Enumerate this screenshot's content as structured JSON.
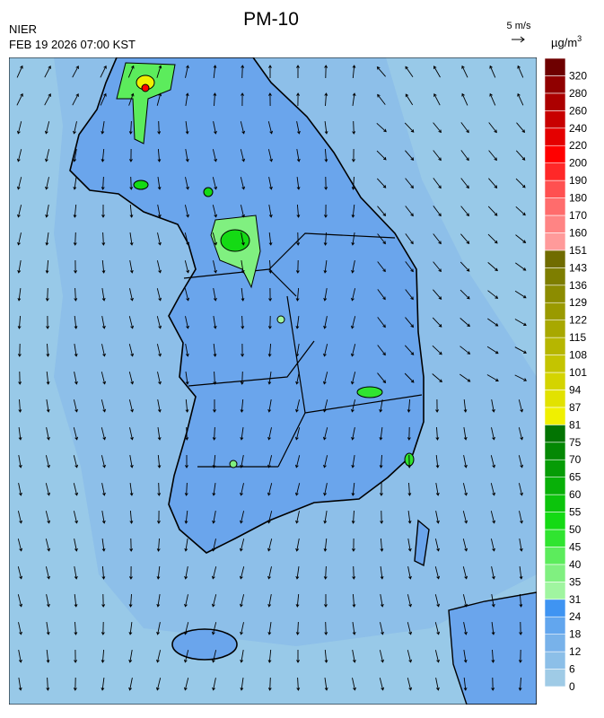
{
  "header": {
    "title": "PM-10",
    "agency": "NIER",
    "timestamp": "FEB 19 2026 07:00 KST"
  },
  "wind_scale": {
    "label": "5 m/s"
  },
  "colorbar": {
    "unit": {
      "base": "µg/m",
      "exponent": "3"
    },
    "levels": [
      {
        "value": 0,
        "color": "#9fcbe6"
      },
      {
        "value": 6,
        "color": "#8cbfe8"
      },
      {
        "value": 12,
        "color": "#78b2ea"
      },
      {
        "value": 18,
        "color": "#62a6ee"
      },
      {
        "value": 24,
        "color": "#3f94f2"
      },
      {
        "value": 31,
        "color": "#a0f5a0"
      },
      {
        "value": 35,
        "color": "#80f080"
      },
      {
        "value": 40,
        "color": "#5cec5c"
      },
      {
        "value": 45,
        "color": "#30e430"
      },
      {
        "value": 50,
        "color": "#14da14"
      },
      {
        "value": 55,
        "color": "#0cc40c"
      },
      {
        "value": 60,
        "color": "#08b008"
      },
      {
        "value": 65,
        "color": "#069c06"
      },
      {
        "value": 70,
        "color": "#048804"
      },
      {
        "value": 75,
        "color": "#027402"
      },
      {
        "value": 81,
        "color": "#f0f000"
      },
      {
        "value": 87,
        "color": "#e2e200"
      },
      {
        "value": 94,
        "color": "#d4d400"
      },
      {
        "value": 101,
        "color": "#c4c400"
      },
      {
        "value": 108,
        "color": "#b6b600"
      },
      {
        "value": 115,
        "color": "#a8a800"
      },
      {
        "value": 122,
        "color": "#9a9a00"
      },
      {
        "value": 129,
        "color": "#8c8c00"
      },
      {
        "value": 136,
        "color": "#7e7e00"
      },
      {
        "value": 143,
        "color": "#706c00"
      },
      {
        "value": 151,
        "color": "#ff9a9a"
      },
      {
        "value": 160,
        "color": "#ff8484"
      },
      {
        "value": 170,
        "color": "#ff6c6c"
      },
      {
        "value": 180,
        "color": "#ff5050"
      },
      {
        "value": 190,
        "color": "#ff2828"
      },
      {
        "value": 200,
        "color": "#ff0000"
      },
      {
        "value": 220,
        "color": "#e40000"
      },
      {
        "value": 240,
        "color": "#c80000"
      },
      {
        "value": 260,
        "color": "#ac0000"
      },
      {
        "value": 280,
        "color": "#900000"
      },
      {
        "value": 320,
        "color": "#6e0000"
      }
    ]
  }
}
